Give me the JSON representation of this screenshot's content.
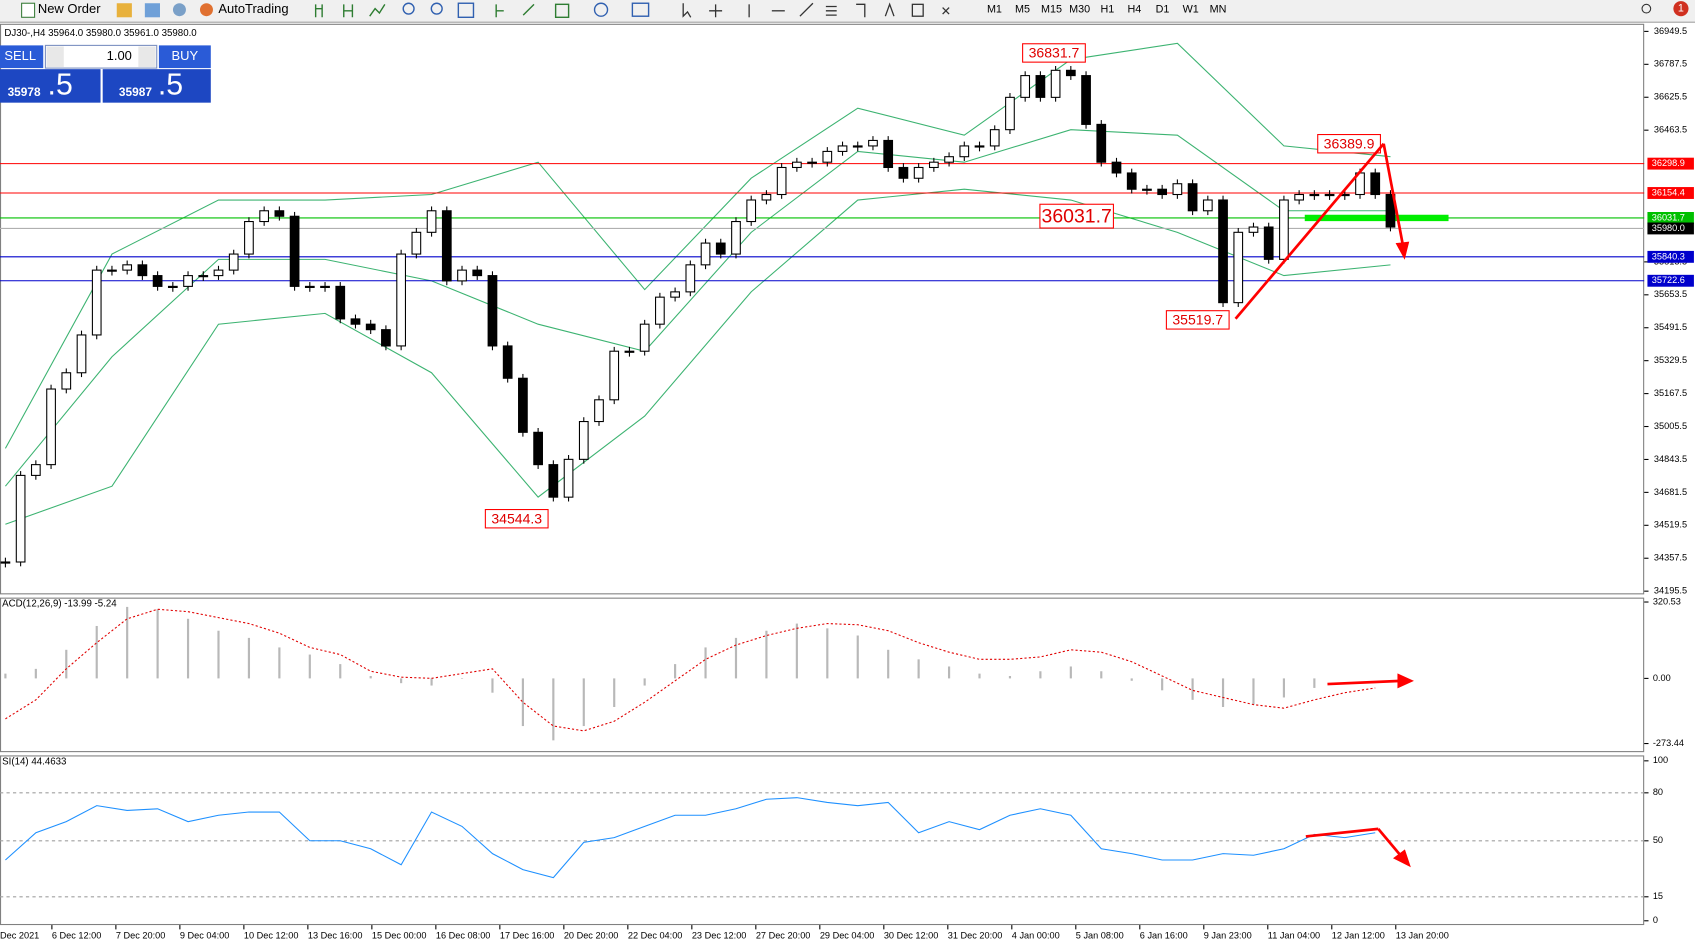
{
  "toolbar": {
    "new_order": "New Order",
    "auto_trading": "AutoTrading",
    "timeframes": [
      "M1",
      "M5",
      "M15",
      "M30",
      "H1",
      "H4",
      "D1",
      "W1",
      "MN"
    ],
    "notification_count": "1"
  },
  "trade_panel": {
    "sell": "SELL",
    "buy": "BUY",
    "volume": "1.00",
    "sell_price_main": "35978",
    "sell_price_tail": ".5",
    "buy_price_main": "35987",
    "buy_price_tail": ".5"
  },
  "main_chart": {
    "info": "DJ30-,H4  35964.0 35980.0 35961.0 35980.0",
    "ylim": [
      34185,
      36987
    ],
    "yticks": [
      36949.5,
      36787.5,
      36625.5,
      36463.5,
      35815.5,
      35653.5,
      35491.5,
      35329.5,
      35167.5,
      35005.5,
      34843.5,
      34681.5,
      34519.5,
      34357.5,
      34195.5
    ],
    "closes": [
      34339,
      34765,
      34818,
      35190,
      35270,
      35456,
      35775,
      35775,
      35801,
      35748,
      35695,
      35695,
      35748,
      35748,
      35775,
      35854,
      36014,
      36067,
      36040,
      35695,
      35695,
      35695,
      35535,
      35509,
      35482,
      35402,
      35854,
      35961,
      36067,
      35722,
      35775,
      35748,
      35402,
      35243,
      34977,
      34818,
      34658,
      34844,
      35030,
      35137,
      35376,
      35376,
      35509,
      35642,
      35668,
      35801,
      35908,
      35854,
      36014,
      36120,
      36147,
      36280,
      36306,
      36306,
      36359,
      36386,
      36386,
      36413,
      36280,
      36227,
      36280,
      36306,
      36333,
      36386,
      36386,
      36466,
      36625,
      36732,
      36625,
      36758,
      36732,
      36492,
      36306,
      36253,
      36173,
      36173,
      36147,
      36200,
      36067,
      36120,
      35615,
      35961,
      35987,
      35828,
      36120,
      36147,
      36147,
      36147,
      36147,
      36253,
      36147,
      35987
    ],
    "bands": {
      "color": "#3cb371",
      "upper": [
        34898,
        35854,
        36120,
        36120,
        36147,
        36306,
        35679,
        36227,
        36572,
        36439,
        36811,
        36891,
        36386,
        36333
      ],
      "middle": [
        34712,
        35349,
        35828,
        35828,
        35722,
        35509,
        35376,
        35961,
        36359,
        36306,
        36466,
        36439,
        36067,
        36067
      ],
      "lower": [
        34525,
        34712,
        35509,
        35562,
        35270,
        34658,
        35057,
        35668,
        36120,
        36173,
        36120,
        35961,
        35748,
        35801
      ]
    },
    "levels": [
      {
        "value": 36298.9,
        "color": "#ff0000"
      },
      {
        "value": 36154.4,
        "color": "#ff0000"
      },
      {
        "value": 36031.7,
        "color": "#00c000"
      },
      {
        "value": 35980,
        "label": "35980.0",
        "color": "#000000"
      },
      {
        "value": 35840.3,
        "color": "#0000cc"
      },
      {
        "value": 35722.6,
        "color": "#0000cc"
      }
    ],
    "annotations": [
      36831.7,
      36389.9,
      36031.7,
      35519.7,
      34544.3
    ]
  },
  "macd_panel": {
    "label": "ACD(12,26,9) -13.99 -5.24",
    "ylim": [
      -305,
      339
    ],
    "yticks": [
      320.53,
      {
        "value": 0,
        "label": "0.00"
      },
      -273.44
    ],
    "histogram": [
      20,
      40,
      120,
      220,
      300,
      290,
      250,
      200,
      170,
      130,
      100,
      60,
      10,
      -20,
      -30,
      0,
      -60,
      -200,
      -260,
      -200,
      -120,
      -30,
      60,
      130,
      170,
      200,
      230,
      210,
      180,
      120,
      80,
      50,
      20,
      10,
      30,
      50,
      30,
      -10,
      -50,
      -90,
      -120,
      -110,
      -80,
      -40,
      null,
      null
    ],
    "signal": [
      -170,
      -90,
      40,
      150,
      250,
      290,
      280,
      255,
      230,
      190,
      130,
      100,
      30,
      5,
      0,
      20,
      40,
      -100,
      -200,
      -220,
      -180,
      -100,
      -10,
      80,
      140,
      180,
      210,
      230,
      225,
      200,
      150,
      110,
      80,
      80,
      90,
      120,
      110,
      70,
      10,
      -50,
      -80,
      -110,
      -125,
      -90,
      -60,
      -40
    ]
  },
  "rsi_panel": {
    "label": "SI(14) 44.4633",
    "ylim": [
      -2,
      103.4
    ],
    "yticks": [
      100,
      80,
      50,
      15,
      0
    ],
    "values": [
      38,
      55,
      62,
      72,
      69,
      70,
      62,
      66,
      68,
      68,
      50,
      50,
      45,
      35,
      68,
      59,
      42,
      32,
      27,
      49,
      52,
      59,
      66,
      66,
      70,
      76,
      77,
      74,
      72,
      74,
      55,
      62,
      57,
      66,
      70,
      66,
      45,
      42,
      38,
      38,
      42,
      41,
      45,
      54,
      52,
      55
    ]
  },
  "time_axis": [
    "Dec 2021",
    "6 Dec 12:00",
    "7 Dec 20:00",
    "9 Dec 04:00",
    "10 Dec 12:00",
    "13 Dec 16:00",
    "15 Dec 00:00",
    "16 Dec 08:00",
    "17 Dec 16:00",
    "20 Dec 20:00",
    "22 Dec 04:00",
    "23 Dec 12:00",
    "27 Dec 20:00",
    "29 Dec 04:00",
    "30 Dec 12:00",
    "31 Dec 20:00",
    "4 Jan 00:00",
    "5 Jan 08:00",
    "6 Jan 16:00",
    "9 Jan 23:00",
    "11 Jan 04:00",
    "12 Jan 12:00",
    "13 Jan 20:00"
  ]
}
